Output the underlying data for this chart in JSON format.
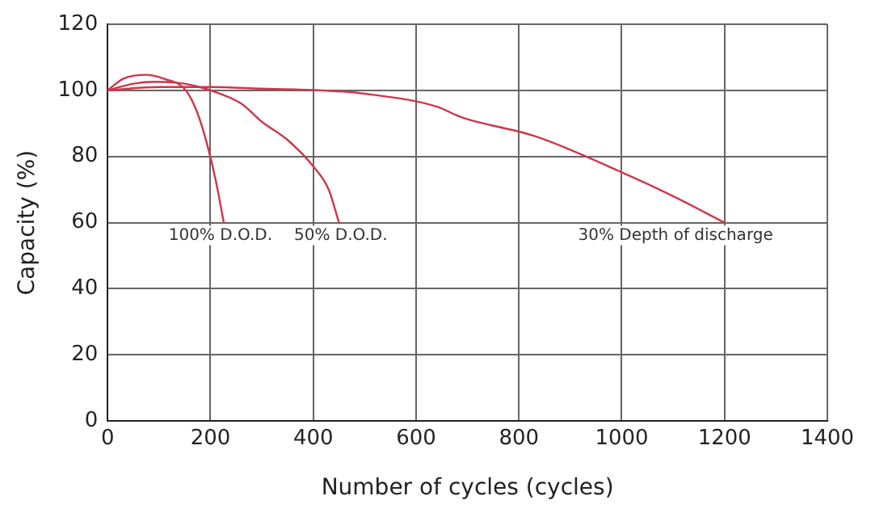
{
  "chart_data": {
    "type": "line",
    "xlabel": "Number of cycles (cycles)",
    "ylabel": "Capacity (%)",
    "xlim": [
      0,
      1400
    ],
    "xticks": [
      0,
      200,
      400,
      600,
      800,
      1000,
      1200,
      1400
    ],
    "ylim": [
      0,
      120
    ],
    "yticks": [
      0,
      20,
      40,
      60,
      80,
      100,
      120
    ],
    "grid": true,
    "legend": false,
    "marker": "none",
    "line_style": "solid",
    "series": [
      {
        "color": "#d0364a",
        "x": [
          0,
          30,
          74,
          110,
          152,
          175,
          193,
          210,
          226
        ],
        "values": [
          100,
          103.5,
          104.7,
          103.5,
          100,
          93,
          84,
          73,
          60
        ]
      },
      {
        "color": "#d0364a",
        "x": [
          0,
          50,
          91,
          150,
          200,
          260,
          300,
          350,
          400,
          430,
          450
        ],
        "values": [
          100,
          102,
          102.6,
          102,
          100,
          96,
          90.5,
          85,
          77,
          70,
          60
        ]
      },
      {
        "color": "#d0364a",
        "x": [
          0,
          100,
          200,
          300,
          415,
          500,
          642,
          686,
          834,
          1003,
          1100,
          1200
        ],
        "values": [
          100,
          101,
          101,
          100.5,
          100,
          99,
          95,
          92,
          86,
          75,
          68,
          60
        ]
      }
    ],
    "annotations": [
      {
        "text": "100% D.O.D.",
        "x": 226,
        "y": 60
      },
      {
        "text": "50% D.O.D.",
        "x": 450,
        "y": 60
      },
      {
        "text": "30% Depth of discharge",
        "x": 1200,
        "y": 60
      }
    ]
  }
}
